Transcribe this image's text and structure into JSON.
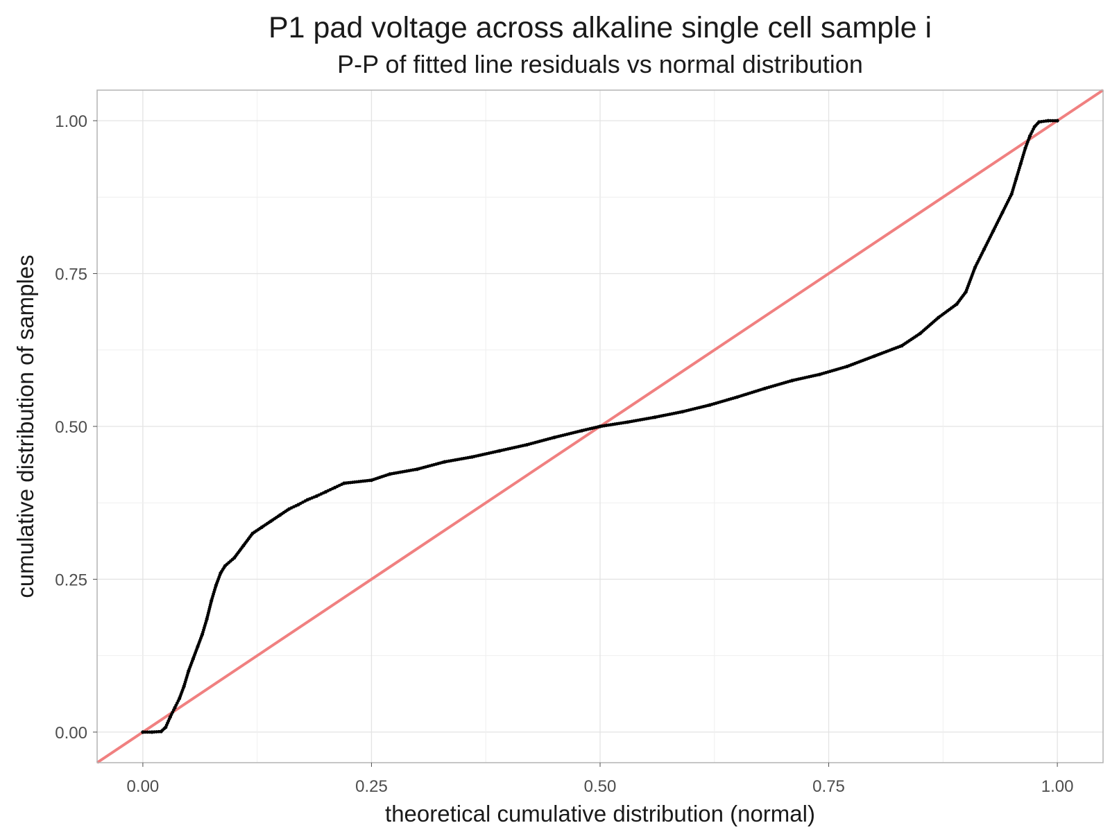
{
  "chart_data": {
    "type": "scatter",
    "title": "P1 pad voltage across alkaline single cell sample i",
    "subtitle": "P-P of fitted line residuals vs normal distribution",
    "xlabel": "theoretical cumulative distribution (normal)",
    "ylabel": "cumulative distribution of samples",
    "xlim": [
      -0.05,
      1.05
    ],
    "ylim": [
      -0.05,
      1.05
    ],
    "x_ticks": [
      "0.00",
      "0.25",
      "0.50",
      "0.75",
      "1.00"
    ],
    "y_ticks": [
      "0.00",
      "0.25",
      "0.50",
      "0.75",
      "1.00"
    ],
    "grid": true,
    "series": [
      {
        "kind": "points",
        "color": "#000000",
        "points": [
          [
            0.0,
            0.0
          ],
          [
            0.01,
            0.0
          ],
          [
            0.02,
            0.001
          ],
          [
            0.025,
            0.008
          ],
          [
            0.03,
            0.025
          ],
          [
            0.035,
            0.04
          ],
          [
            0.04,
            0.055
          ],
          [
            0.045,
            0.075
          ],
          [
            0.05,
            0.1
          ],
          [
            0.055,
            0.12
          ],
          [
            0.06,
            0.14
          ],
          [
            0.065,
            0.16
          ],
          [
            0.07,
            0.185
          ],
          [
            0.075,
            0.215
          ],
          [
            0.08,
            0.24
          ],
          [
            0.085,
            0.26
          ],
          [
            0.09,
            0.272
          ],
          [
            0.1,
            0.285
          ],
          [
            0.11,
            0.305
          ],
          [
            0.12,
            0.325
          ],
          [
            0.13,
            0.335
          ],
          [
            0.14,
            0.345
          ],
          [
            0.15,
            0.355
          ],
          [
            0.16,
            0.365
          ],
          [
            0.17,
            0.372
          ],
          [
            0.18,
            0.38
          ],
          [
            0.19,
            0.386
          ],
          [
            0.2,
            0.393
          ],
          [
            0.21,
            0.4
          ],
          [
            0.22,
            0.407
          ],
          [
            0.25,
            0.412
          ],
          [
            0.27,
            0.422
          ],
          [
            0.3,
            0.43
          ],
          [
            0.33,
            0.442
          ],
          [
            0.36,
            0.45
          ],
          [
            0.39,
            0.46
          ],
          [
            0.42,
            0.47
          ],
          [
            0.45,
            0.482
          ],
          [
            0.48,
            0.493
          ],
          [
            0.5,
            0.5
          ],
          [
            0.53,
            0.507
          ],
          [
            0.56,
            0.515
          ],
          [
            0.59,
            0.524
          ],
          [
            0.62,
            0.535
          ],
          [
            0.65,
            0.548
          ],
          [
            0.68,
            0.562
          ],
          [
            0.71,
            0.575
          ],
          [
            0.74,
            0.585
          ],
          [
            0.77,
            0.598
          ],
          [
            0.8,
            0.615
          ],
          [
            0.83,
            0.632
          ],
          [
            0.85,
            0.652
          ],
          [
            0.87,
            0.678
          ],
          [
            0.89,
            0.7
          ],
          [
            0.9,
            0.72
          ],
          [
            0.91,
            0.76
          ],
          [
            0.92,
            0.79
          ],
          [
            0.93,
            0.82
          ],
          [
            0.94,
            0.85
          ],
          [
            0.95,
            0.88
          ],
          [
            0.955,
            0.905
          ],
          [
            0.96,
            0.93
          ],
          [
            0.965,
            0.955
          ],
          [
            0.97,
            0.975
          ],
          [
            0.975,
            0.99
          ],
          [
            0.98,
            0.998
          ],
          [
            0.99,
            1.0
          ],
          [
            1.0,
            1.0
          ]
        ]
      },
      {
        "kind": "reference-line",
        "color": "#f08080",
        "slope": 1,
        "intercept": 0
      }
    ]
  }
}
